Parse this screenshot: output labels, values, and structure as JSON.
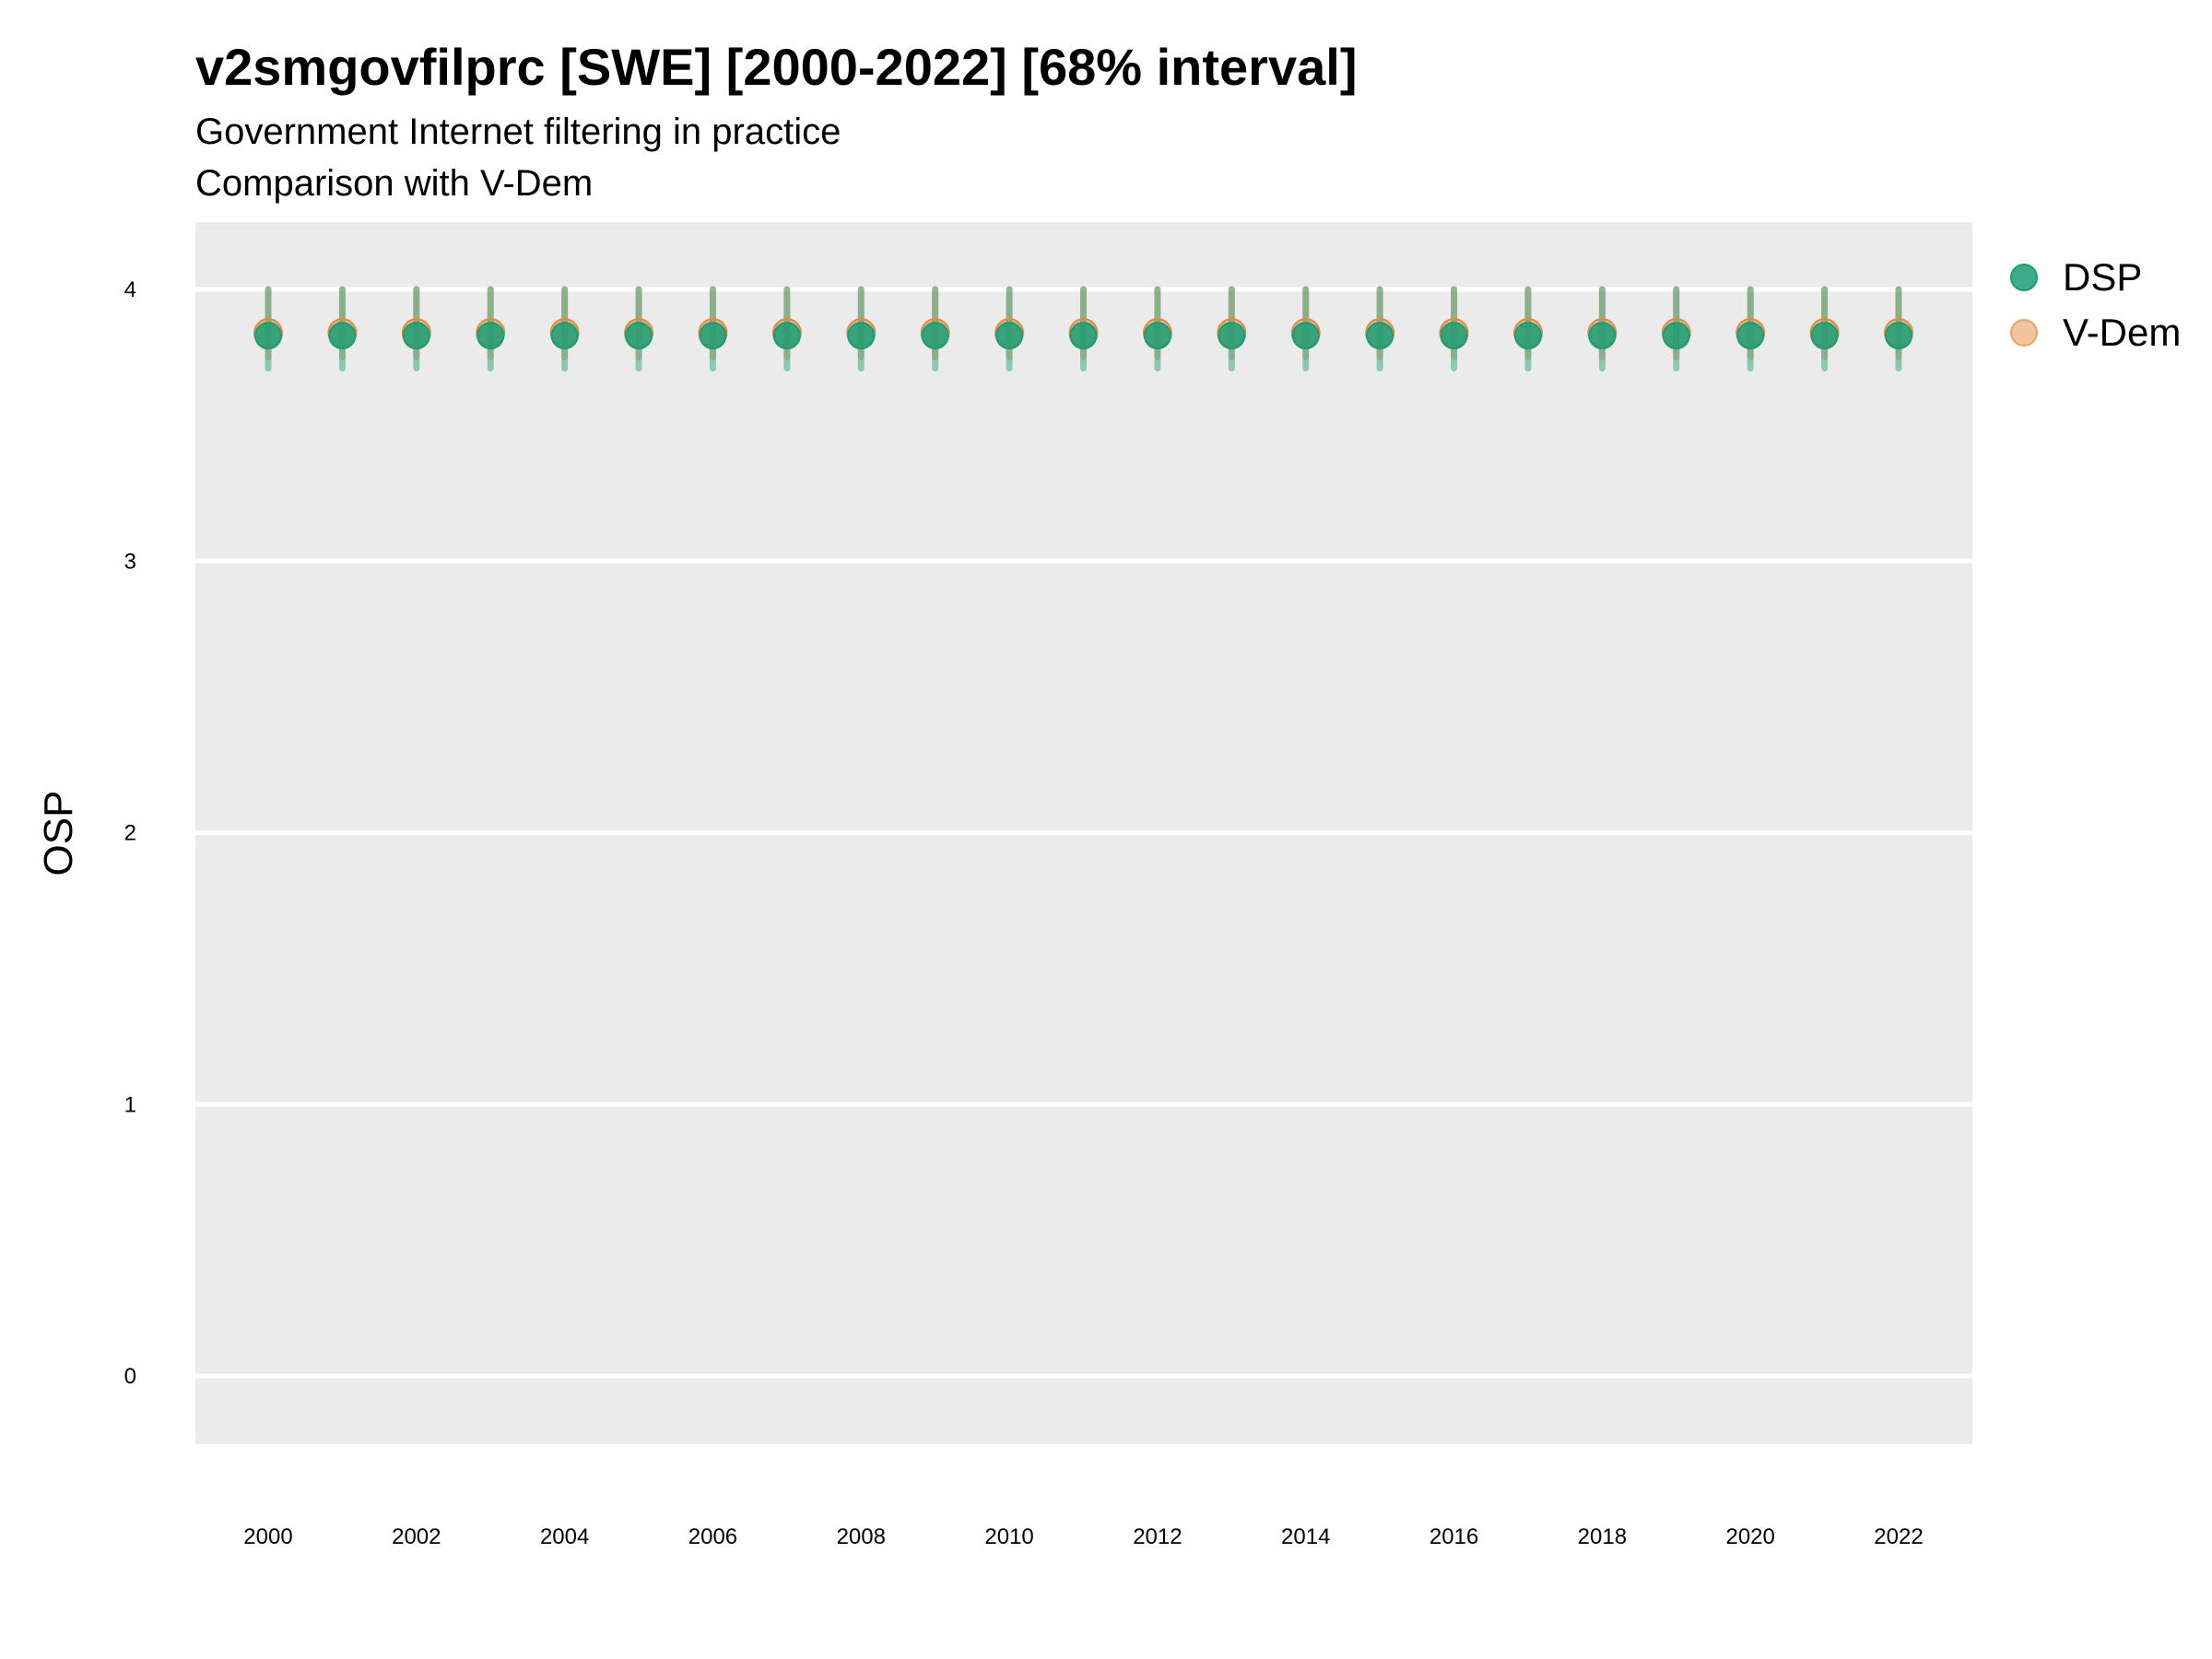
{
  "chart_data": {
    "type": "scatter",
    "title": "v2smgovfilprc [SWE] [2000-2022] [68% interval]",
    "subtitle": "Government Internet filtering in practice",
    "caption_line": "Comparison with V-Dem",
    "xlabel": "",
    "ylabel": "OSP",
    "xlim": [
      1999,
      2023
    ],
    "ylim": [
      -0.25,
      4.25
    ],
    "x_ticks": [
      2000,
      2002,
      2004,
      2006,
      2008,
      2010,
      2012,
      2014,
      2016,
      2018,
      2020,
      2022
    ],
    "y_ticks": [
      0,
      1,
      2,
      3,
      4
    ],
    "grid": true,
    "legend_position": "right",
    "x": [
      2000,
      2001,
      2002,
      2003,
      2004,
      2005,
      2006,
      2007,
      2008,
      2009,
      2010,
      2011,
      2012,
      2013,
      2014,
      2015,
      2016,
      2017,
      2018,
      2019,
      2020,
      2021,
      2022
    ],
    "series": [
      {
        "name": "V-Dem",
        "color": "#E6883C",
        "values": [
          3.84,
          3.84,
          3.84,
          3.84,
          3.84,
          3.84,
          3.84,
          3.84,
          3.84,
          3.84,
          3.84,
          3.84,
          3.84,
          3.84,
          3.84,
          3.84,
          3.84,
          3.84,
          3.84,
          3.84,
          3.84,
          3.84,
          3.84
        ],
        "lower": [
          3.75,
          3.75,
          3.75,
          3.75,
          3.75,
          3.75,
          3.75,
          3.75,
          3.75,
          3.75,
          3.75,
          3.75,
          3.75,
          3.75,
          3.75,
          3.75,
          3.75,
          3.75,
          3.75,
          3.75,
          3.75,
          3.75,
          3.75
        ],
        "upper": [
          4.0,
          4.0,
          4.0,
          4.0,
          4.0,
          4.0,
          4.0,
          4.0,
          4.0,
          4.0,
          4.0,
          4.0,
          4.0,
          4.0,
          4.0,
          4.0,
          4.0,
          4.0,
          4.0,
          4.0,
          4.0,
          4.0,
          4.0
        ]
      },
      {
        "name": "DSP",
        "color": "#1B9E77",
        "values": [
          3.83,
          3.83,
          3.83,
          3.83,
          3.83,
          3.83,
          3.83,
          3.83,
          3.83,
          3.83,
          3.83,
          3.83,
          3.83,
          3.83,
          3.83,
          3.83,
          3.83,
          3.83,
          3.83,
          3.83,
          3.83,
          3.83,
          3.83
        ],
        "lower": [
          3.71,
          3.71,
          3.71,
          3.71,
          3.71,
          3.71,
          3.71,
          3.71,
          3.71,
          3.71,
          3.71,
          3.71,
          3.71,
          3.71,
          3.71,
          3.71,
          3.71,
          3.71,
          3.71,
          3.71,
          3.71,
          3.71,
          3.71
        ],
        "upper": [
          4.0,
          4.0,
          4.0,
          4.0,
          4.0,
          4.0,
          4.0,
          4.0,
          4.0,
          4.0,
          4.0,
          4.0,
          4.0,
          4.0,
          4.0,
          4.0,
          4.0,
          4.0,
          4.0,
          4.0,
          4.0,
          4.0,
          4.0
        ]
      }
    ],
    "legend": [
      "DSP",
      "V-Dem"
    ]
  }
}
